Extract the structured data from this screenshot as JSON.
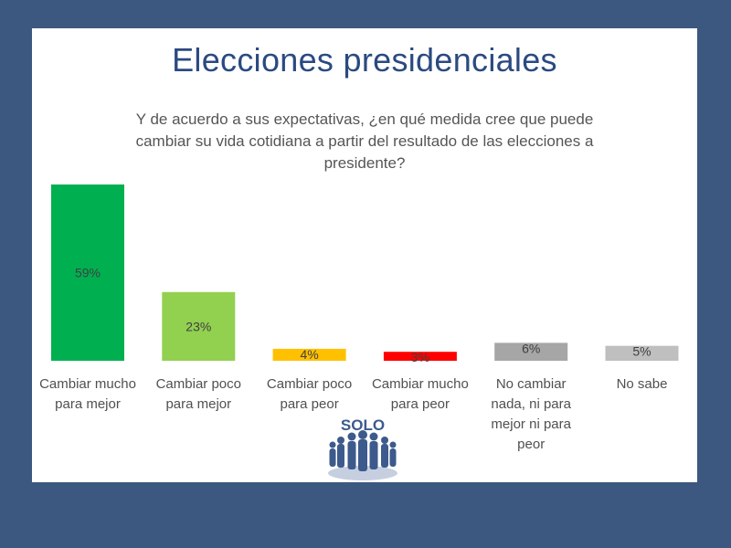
{
  "slide": {
    "title": "Elecciones presidenciales",
    "question": "Y de acuerdo a sus expectativas, ¿en qué medida cree que puede cambiar su vida cotidiana a partir del resultado de las elecciones a presidente?"
  },
  "logo": {
    "text": "SOLO",
    "icon": "people-crowd-icon"
  },
  "chart_data": {
    "type": "bar",
    "title": "",
    "xlabel": "",
    "ylabel": "",
    "ylim": [
      0,
      59
    ],
    "grid": false,
    "legend": "none",
    "categories": [
      [
        "Cambiar mucho",
        "para mejor"
      ],
      [
        "Cambiar poco",
        "para mejor"
      ],
      [
        "Cambiar poco",
        "para peor"
      ],
      [
        "Cambiar mucho",
        "para peor"
      ],
      [
        "No cambiar",
        "nada, ni para",
        "mejor ni para",
        "peor"
      ],
      [
        "No sabe"
      ]
    ],
    "values": [
      59,
      23,
      4,
      3,
      6,
      5
    ],
    "value_labels": [
      "59%",
      "23%",
      "4%",
      "3%",
      "6%",
      "5%"
    ],
    "colors": [
      "#00b050",
      "#92d050",
      "#ffc000",
      "#ff0000",
      "#a6a6a6",
      "#bfbfbf"
    ]
  }
}
